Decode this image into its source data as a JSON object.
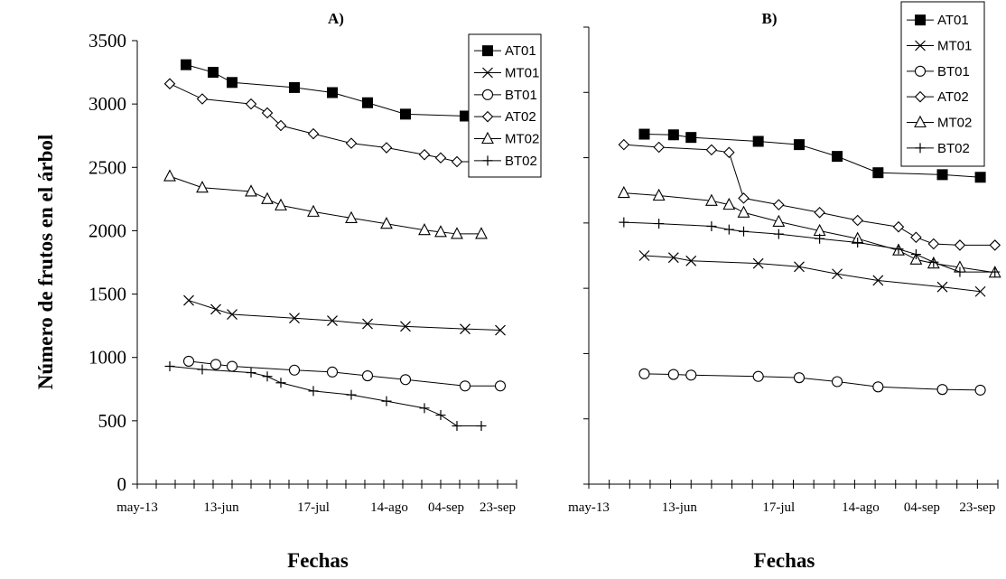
{
  "y_axis_label": "Número de frutos en el árbol",
  "chart_data": [
    {
      "type": "line",
      "title": "A)",
      "xlabel": "Fechas",
      "ylabel": "Número de frutos en el árbol",
      "xlim": [
        "2008-05-13",
        "2008-09-30"
      ],
      "ylim": [
        0,
        3500
      ],
      "y_ticks": [
        0,
        500,
        1000,
        1500,
        2000,
        2500,
        3000,
        3500
      ],
      "x_tick_labels": [
        "may-13",
        "13-jun",
        "17-jul",
        "14-ago",
        "04-sep",
        "23-sep"
      ],
      "x_tick_dates": [
        "2008-05-13",
        "2008-06-13",
        "2008-07-17",
        "2008-08-14",
        "2008-09-04",
        "2008-09-23"
      ],
      "legend": {
        "position": "top-right",
        "entries": [
          "AT01",
          "MT01",
          "BT01",
          "AT02",
          "MT02",
          "BT02"
        ]
      },
      "series": [
        {
          "name": "AT01",
          "marker": "square-filled",
          "points": [
            [
              "2008-05-31",
              3310
            ],
            [
              "2008-06-10",
              3250
            ],
            [
              "2008-06-17",
              3170
            ],
            [
              "2008-07-10",
              3130
            ],
            [
              "2008-07-24",
              3090
            ],
            [
              "2008-08-06",
              3010
            ],
            [
              "2008-08-20",
              2920
            ],
            [
              "2008-09-11",
              2905
            ],
            [
              "2008-09-24",
              2895
            ]
          ]
        },
        {
          "name": "MT01",
          "marker": "x",
          "points": [
            [
              "2008-06-01",
              1450
            ],
            [
              "2008-06-11",
              1380
            ],
            [
              "2008-06-17",
              1340
            ],
            [
              "2008-07-10",
              1310
            ],
            [
              "2008-07-24",
              1290
            ],
            [
              "2008-08-06",
              1265
            ],
            [
              "2008-08-20",
              1245
            ],
            [
              "2008-09-11",
              1225
            ],
            [
              "2008-09-24",
              1215
            ]
          ]
        },
        {
          "name": "BT01",
          "marker": "circle-open",
          "points": [
            [
              "2008-06-01",
              970
            ],
            [
              "2008-06-11",
              945
            ],
            [
              "2008-06-17",
              930
            ],
            [
              "2008-07-10",
              900
            ],
            [
              "2008-07-24",
              885
            ],
            [
              "2008-08-06",
              855
            ],
            [
              "2008-08-20",
              825
            ],
            [
              "2008-09-11",
              775
            ],
            [
              "2008-09-24",
              775
            ]
          ]
        },
        {
          "name": "AT02",
          "marker": "diamond-open",
          "points": [
            [
              "2008-05-25",
              3160
            ],
            [
              "2008-06-06",
              3040
            ],
            [
              "2008-06-24",
              3000
            ],
            [
              "2008-06-30",
              2930
            ],
            [
              "2008-07-05",
              2830
            ],
            [
              "2008-07-17",
              2765
            ],
            [
              "2008-07-31",
              2690
            ],
            [
              "2008-08-13",
              2655
            ],
            [
              "2008-08-27",
              2600
            ],
            [
              "2008-09-02",
              2575
            ],
            [
              "2008-09-08",
              2545
            ],
            [
              "2008-09-17",
              2545
            ]
          ]
        },
        {
          "name": "MT02",
          "marker": "triangle-open",
          "points": [
            [
              "2008-05-25",
              2430
            ],
            [
              "2008-06-06",
              2340
            ],
            [
              "2008-06-24",
              2310
            ],
            [
              "2008-06-30",
              2250
            ],
            [
              "2008-07-05",
              2200
            ],
            [
              "2008-07-17",
              2150
            ],
            [
              "2008-07-31",
              2100
            ],
            [
              "2008-08-13",
              2055
            ],
            [
              "2008-08-27",
              2005
            ],
            [
              "2008-09-02",
              1990
            ],
            [
              "2008-09-08",
              1975
            ],
            [
              "2008-09-17",
              1975
            ]
          ]
        },
        {
          "name": "BT02",
          "marker": "plus",
          "points": [
            [
              "2008-05-25",
              930
            ],
            [
              "2008-06-06",
              905
            ],
            [
              "2008-06-24",
              880
            ],
            [
              "2008-06-30",
              850
            ],
            [
              "2008-07-05",
              800
            ],
            [
              "2008-07-17",
              735
            ],
            [
              "2008-07-31",
              705
            ],
            [
              "2008-08-13",
              655
            ],
            [
              "2008-08-27",
              600
            ],
            [
              "2008-09-02",
              545
            ],
            [
              "2008-09-08",
              460
            ],
            [
              "2008-09-17",
              460
            ]
          ]
        }
      ]
    },
    {
      "type": "line",
      "title": "B)",
      "xlabel": "Fechas",
      "ylabel": "",
      "xlim": [
        "2008-05-13",
        "2008-09-30"
      ],
      "ylim": [
        0,
        3500
      ],
      "x_tick_labels": [
        "may-13",
        "13-jun",
        "17-jul",
        "14-ago",
        "04-sep",
        "23-sep"
      ],
      "x_tick_dates": [
        "2008-05-13",
        "2008-06-13",
        "2008-07-17",
        "2008-08-14",
        "2008-09-04",
        "2008-09-23"
      ],
      "legend": {
        "position": "top-right",
        "entries": [
          "AT01",
          "MT01",
          "BT01",
          "AT02",
          "MT02",
          "BT02"
        ]
      },
      "series": [
        {
          "name": "AT01",
          "marker": "square-filled",
          "points": [
            [
              "2008-06-01",
              2680
            ],
            [
              "2008-06-11",
              2675
            ],
            [
              "2008-06-17",
              2655
            ],
            [
              "2008-07-10",
              2625
            ],
            [
              "2008-07-24",
              2600
            ],
            [
              "2008-08-06",
              2510
            ],
            [
              "2008-08-20",
              2385
            ],
            [
              "2008-09-11",
              2370
            ],
            [
              "2008-09-24",
              2350
            ]
          ]
        },
        {
          "name": "MT01",
          "marker": "x",
          "points": [
            [
              "2008-06-01",
              1750
            ],
            [
              "2008-06-11",
              1735
            ],
            [
              "2008-06-17",
              1710
            ],
            [
              "2008-07-10",
              1690
            ],
            [
              "2008-07-24",
              1665
            ],
            [
              "2008-08-06",
              1610
            ],
            [
              "2008-08-20",
              1560
            ],
            [
              "2008-09-11",
              1510
            ],
            [
              "2008-09-24",
              1475
            ]
          ]
        },
        {
          "name": "BT01",
          "marker": "circle-open",
          "points": [
            [
              "2008-06-01",
              845
            ],
            [
              "2008-06-11",
              840
            ],
            [
              "2008-06-17",
              835
            ],
            [
              "2008-07-10",
              825
            ],
            [
              "2008-07-24",
              815
            ],
            [
              "2008-08-06",
              785
            ],
            [
              "2008-08-20",
              745
            ],
            [
              "2008-09-11",
              725
            ],
            [
              "2008-09-24",
              720
            ]
          ]
        },
        {
          "name": "AT02",
          "marker": "diamond-open",
          "points": [
            [
              "2008-05-25",
              2600
            ],
            [
              "2008-06-06",
              2580
            ],
            [
              "2008-06-24",
              2560
            ],
            [
              "2008-06-30",
              2540
            ],
            [
              "2008-07-05",
              2190
            ],
            [
              "2008-07-17",
              2140
            ],
            [
              "2008-07-31",
              2080
            ],
            [
              "2008-08-13",
              2020
            ],
            [
              "2008-08-27",
              1970
            ],
            [
              "2008-09-02",
              1890
            ],
            [
              "2008-09-08",
              1840
            ],
            [
              "2008-09-17",
              1830
            ],
            [
              "2008-09-29",
              1830
            ]
          ]
        },
        {
          "name": "MT02",
          "marker": "triangle-open",
          "points": [
            [
              "2008-05-25",
              2230
            ],
            [
              "2008-06-06",
              2210
            ],
            [
              "2008-06-24",
              2170
            ],
            [
              "2008-06-30",
              2140
            ],
            [
              "2008-07-05",
              2080
            ],
            [
              "2008-07-17",
              2010
            ],
            [
              "2008-07-31",
              1940
            ],
            [
              "2008-08-13",
              1880
            ],
            [
              "2008-08-27",
              1790
            ],
            [
              "2008-09-02",
              1720
            ],
            [
              "2008-09-08",
              1690
            ],
            [
              "2008-09-17",
              1660
            ],
            [
              "2008-09-29",
              1620
            ]
          ]
        },
        {
          "name": "BT02",
          "marker": "plus",
          "points": [
            [
              "2008-05-25",
              2005
            ],
            [
              "2008-06-06",
              1995
            ],
            [
              "2008-06-24",
              1975
            ],
            [
              "2008-06-30",
              1950
            ],
            [
              "2008-07-05",
              1935
            ],
            [
              "2008-07-17",
              1915
            ],
            [
              "2008-07-31",
              1880
            ],
            [
              "2008-08-13",
              1850
            ],
            [
              "2008-08-27",
              1800
            ],
            [
              "2008-09-02",
              1760
            ],
            [
              "2008-09-08",
              1700
            ],
            [
              "2008-09-17",
              1625
            ],
            [
              "2008-09-29",
              1625
            ]
          ]
        }
      ]
    }
  ]
}
